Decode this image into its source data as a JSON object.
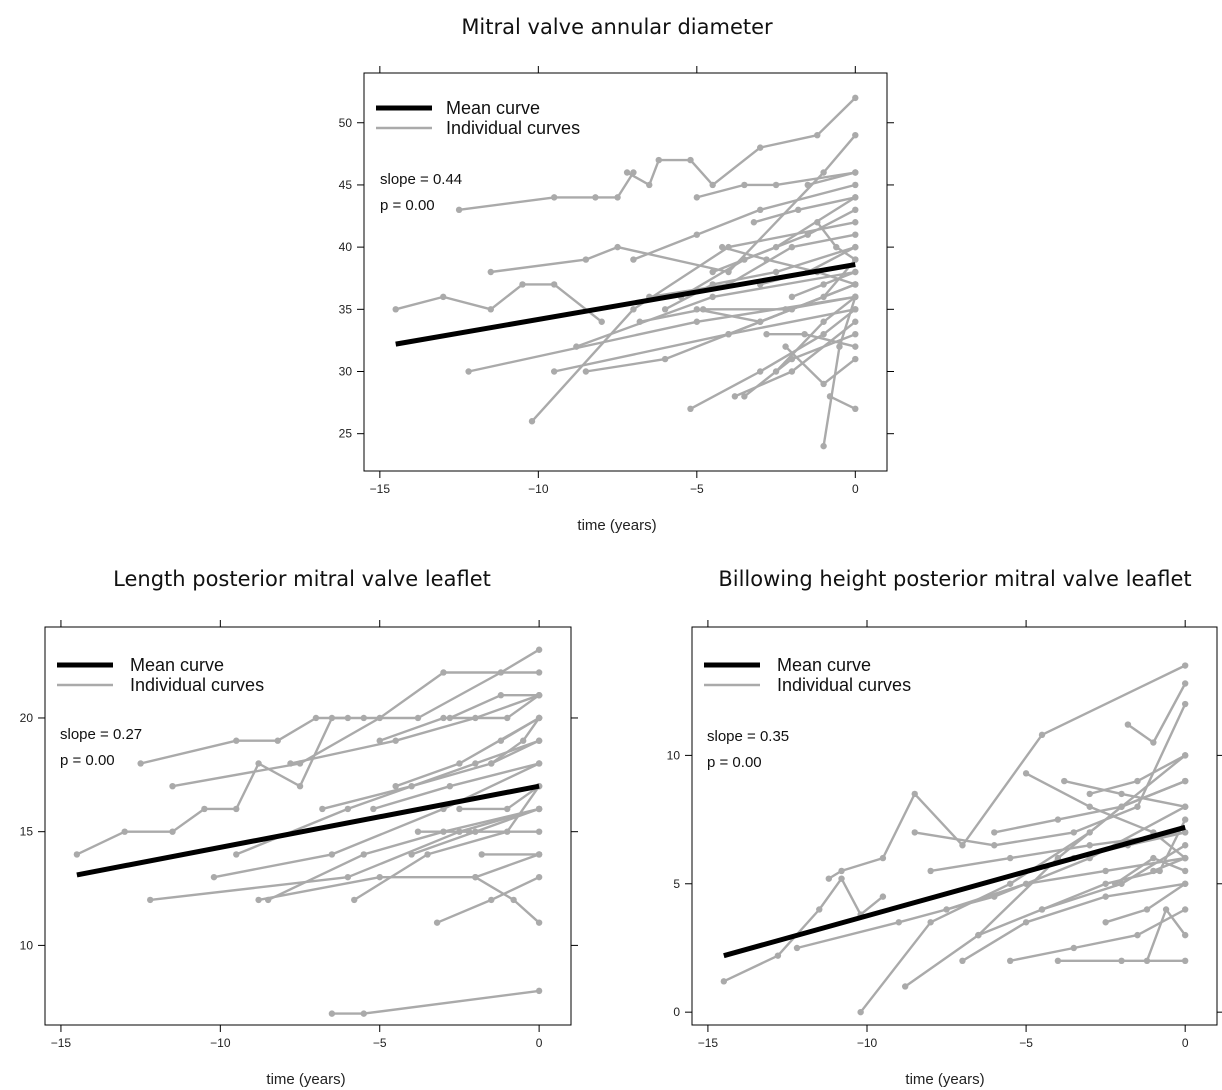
{
  "chart_data": [
    {
      "type": "line",
      "title": "Mitral valve annular diameter",
      "xlabel": "time (years)",
      "ylabel": "",
      "xlim": [
        -15.5,
        1.0
      ],
      "ylim": [
        22,
        54
      ],
      "xticks": [
        -15,
        -10,
        -5,
        0
      ],
      "yticks": [
        25,
        30,
        35,
        40,
        45,
        50
      ],
      "legend": {
        "position": "top-left",
        "entries": [
          "Mean curve",
          "Individual curves"
        ]
      },
      "annotations": {
        "slope": "slope = 0.44",
        "p": "p = 0.00"
      },
      "grid": false,
      "colors": {
        "mean": "#000000",
        "individual": "#aaaaaa"
      },
      "mean_curve": {
        "x": [
          -14.5,
          0
        ],
        "y": [
          32.2,
          38.6
        ]
      },
      "individual_curves": [
        {
          "x": [
            -14.5,
            -13,
            -11.5,
            -10.5,
            -9.5,
            -8
          ],
          "y": [
            35,
            36,
            35,
            37,
            37,
            34
          ]
        },
        {
          "x": [
            -12.5,
            -9.5,
            -8.2,
            -7.5,
            -7
          ],
          "y": [
            43,
            44,
            44,
            44,
            46
          ]
        },
        {
          "x": [
            -7.2,
            -6.5,
            -6.2,
            -5.2,
            -4.5,
            -3,
            -1.2,
            0
          ],
          "y": [
            46,
            45,
            47,
            47,
            45,
            48,
            49,
            52
          ]
        },
        {
          "x": [
            -11.5,
            -8.5,
            -7.5,
            -4,
            -1,
            0
          ],
          "y": [
            38,
            39,
            40,
            38,
            46,
            49
          ]
        },
        {
          "x": [
            -5,
            -3.5,
            -2.5,
            0
          ],
          "y": [
            44,
            45,
            45,
            46
          ]
        },
        {
          "x": [
            -12.2,
            -5,
            0
          ],
          "y": [
            30,
            34,
            36
          ]
        },
        {
          "x": [
            -9.5,
            -4,
            0
          ],
          "y": [
            30,
            33,
            35
          ]
        },
        {
          "x": [
            -10.2,
            -7,
            -4,
            0
          ],
          "y": [
            26,
            35,
            40,
            42
          ]
        },
        {
          "x": [
            -8.8,
            -4.5,
            0
          ],
          "y": [
            32,
            36,
            38
          ]
        },
        {
          "x": [
            -8.5,
            -6,
            -3,
            0
          ],
          "y": [
            30,
            31,
            34,
            37
          ]
        },
        {
          "x": [
            -7,
            -5,
            -3,
            0
          ],
          "y": [
            39,
            41,
            43,
            45
          ]
        },
        {
          "x": [
            -6.5,
            -4,
            -2,
            0
          ],
          "y": [
            36,
            37,
            40,
            41
          ]
        },
        {
          "x": [
            -6,
            -4.5,
            -2.5,
            0
          ],
          "y": [
            35,
            37,
            38,
            40
          ]
        },
        {
          "x": [
            -5.5,
            -3.5,
            -1.5,
            0
          ],
          "y": [
            36,
            39,
            41,
            43
          ]
        },
        {
          "x": [
            -5,
            -3,
            -1,
            0
          ],
          "y": [
            35,
            34,
            36,
            39
          ]
        },
        {
          "x": [
            -4.5,
            -2.5,
            0
          ],
          "y": [
            38,
            40,
            44
          ]
        },
        {
          "x": [
            -4,
            -2,
            0
          ],
          "y": [
            33,
            35,
            37
          ]
        },
        {
          "x": [
            -3.5,
            -2,
            0
          ],
          "y": [
            28,
            31,
            33
          ]
        },
        {
          "x": [
            -3,
            -1.5,
            0
          ],
          "y": [
            37,
            38,
            40
          ]
        },
        {
          "x": [
            -2.5,
            -1,
            0
          ],
          "y": [
            30,
            34,
            36
          ]
        },
        {
          "x": [
            -2,
            -1,
            0
          ],
          "y": [
            36,
            37,
            38
          ]
        },
        {
          "x": [
            -5.2,
            -3,
            -1,
            0
          ],
          "y": [
            27,
            30,
            33,
            35
          ]
        },
        {
          "x": [
            -3.8,
            -2,
            0
          ],
          "y": [
            28,
            30,
            34
          ]
        },
        {
          "x": [
            -1,
            -0.5,
            0
          ],
          "y": [
            24,
            32,
            36
          ]
        },
        {
          "x": [
            -1.2,
            -0.6,
            0
          ],
          "y": [
            42,
            40,
            39
          ]
        },
        {
          "x": [
            -1.5,
            0
          ],
          "y": [
            45,
            46
          ]
        },
        {
          "x": [
            -2.2,
            -1,
            0
          ],
          "y": [
            32,
            29,
            31
          ]
        },
        {
          "x": [
            -0.8,
            0
          ],
          "y": [
            28,
            27
          ]
        },
        {
          "x": [
            -4.2,
            -2.8,
            -1.2,
            0
          ],
          "y": [
            40,
            39,
            38,
            37
          ]
        },
        {
          "x": [
            -6.8,
            -4.8,
            -2.2,
            0
          ],
          "y": [
            34,
            35,
            35,
            36
          ]
        },
        {
          "x": [
            -3.2,
            -1.8,
            0
          ],
          "y": [
            42,
            43,
            44
          ]
        },
        {
          "x": [
            -2.8,
            -1.6,
            0
          ],
          "y": [
            33,
            33,
            32
          ]
        }
      ]
    },
    {
      "type": "line",
      "title": "Length posterior mitral valve leaflet",
      "xlabel": "time (years)",
      "ylabel": "",
      "xlim": [
        -15.5,
        1.0
      ],
      "ylim": [
        6.5,
        24
      ],
      "xticks": [
        -15,
        -10,
        -5,
        0
      ],
      "yticks": [
        10,
        15,
        20
      ],
      "legend": {
        "position": "top-left",
        "entries": [
          "Mean curve",
          "Individual curves"
        ]
      },
      "annotations": {
        "slope": "slope = 0.27",
        "p": "p = 0.00"
      },
      "grid": false,
      "colors": {
        "mean": "#000000",
        "individual": "#aaaaaa"
      },
      "mean_curve": {
        "x": [
          -14.5,
          0
        ],
        "y": [
          13.1,
          17.0
        ]
      },
      "individual_curves": [
        {
          "x": [
            -14.5,
            -13,
            -11.5,
            -10.5,
            -9.5,
            -8.8,
            -7.5,
            -6.5,
            -6
          ],
          "y": [
            14,
            15,
            15,
            16,
            16,
            18,
            17,
            20,
            20
          ]
        },
        {
          "x": [
            -12.5,
            -9.5,
            -8.2,
            -7,
            -5.5,
            -3.8,
            -1.2,
            0
          ],
          "y": [
            18,
            19,
            19,
            20,
            20,
            20,
            22,
            23
          ]
        },
        {
          "x": [
            -11.5,
            -7.5,
            -5,
            -3,
            0
          ],
          "y": [
            17,
            18,
            20,
            22,
            22
          ]
        },
        {
          "x": [
            -12.2,
            -6,
            -2.5,
            0
          ],
          "y": [
            12,
            13,
            15,
            16
          ]
        },
        {
          "x": [
            -10.2,
            -6.5,
            -3,
            0
          ],
          "y": [
            13,
            14,
            16,
            18
          ]
        },
        {
          "x": [
            -9.5,
            -6,
            -2,
            0
          ],
          "y": [
            14,
            16,
            18,
            19
          ]
        },
        {
          "x": [
            -8.8,
            -5,
            -2,
            0
          ],
          "y": [
            12,
            13,
            13,
            14
          ]
        },
        {
          "x": [
            -8.5,
            -5.5,
            -3,
            0
          ],
          "y": [
            12,
            14,
            15,
            16
          ]
        },
        {
          "x": [
            -7.8,
            -4.5,
            -2,
            0
          ],
          "y": [
            18,
            19,
            20,
            21
          ]
        },
        {
          "x": [
            -6.8,
            -4,
            -1.5,
            0
          ],
          "y": [
            16,
            17,
            18,
            19
          ]
        },
        {
          "x": [
            -6.5,
            -5.5,
            0
          ],
          "y": [
            7,
            7,
            8
          ]
        },
        {
          "x": [
            -5.8,
            -3.5,
            -1,
            0
          ],
          "y": [
            12,
            14,
            15,
            17
          ]
        },
        {
          "x": [
            -5,
            -3,
            -1,
            0
          ],
          "y": [
            19,
            20,
            20,
            21
          ]
        },
        {
          "x": [
            -4.5,
            -2.5,
            0
          ],
          "y": [
            17,
            18,
            20
          ]
        },
        {
          "x": [
            -4,
            -2,
            0
          ],
          "y": [
            14,
            15,
            16
          ]
        },
        {
          "x": [
            -3.2,
            -1.5,
            0
          ],
          "y": [
            11,
            12,
            13
          ]
        },
        {
          "x": [
            -2.8,
            -1.2,
            0
          ],
          "y": [
            20,
            21,
            21
          ]
        },
        {
          "x": [
            -2.5,
            -1,
            0
          ],
          "y": [
            16,
            16,
            17
          ]
        },
        {
          "x": [
            -2,
            -0.8,
            0
          ],
          "y": [
            13,
            12,
            11
          ]
        },
        {
          "x": [
            -1.5,
            -0.5,
            0
          ],
          "y": [
            18,
            19,
            20
          ]
        },
        {
          "x": [
            -3.8,
            -2.2,
            0
          ],
          "y": [
            15,
            15,
            15
          ]
        },
        {
          "x": [
            -5.2,
            -2.8,
            0
          ],
          "y": [
            16,
            17,
            18
          ]
        },
        {
          "x": [
            -1.8,
            0
          ],
          "y": [
            14,
            14
          ]
        },
        {
          "x": [
            -1.2,
            0
          ],
          "y": [
            19,
            20
          ]
        }
      ]
    },
    {
      "type": "line",
      "title": "Billowing height posterior mitral valve leaflet",
      "xlabel": "time (years)",
      "ylabel": "",
      "xlim": [
        -15.5,
        1.0
      ],
      "ylim": [
        -0.5,
        15
      ],
      "xticks": [
        -15,
        -10,
        -5,
        0
      ],
      "yticks": [
        0,
        5,
        10
      ],
      "legend": {
        "position": "top-left",
        "entries": [
          "Mean curve",
          "Individual curves"
        ]
      },
      "annotations": {
        "slope": "slope = 0.35",
        "p": "p = 0.00"
      },
      "grid": false,
      "colors": {
        "mean": "#000000",
        "individual": "#aaaaaa"
      },
      "mean_curve": {
        "x": [
          -14.5,
          0
        ],
        "y": [
          2.2,
          7.2
        ]
      },
      "individual_curves": [
        {
          "x": [
            -14.5,
            -12.8,
            -11.5,
            -10.8,
            -10.2,
            -9.5
          ],
          "y": [
            1.2,
            2.2,
            4.0,
            5.2,
            3.8,
            4.5
          ]
        },
        {
          "x": [
            -11.2,
            -10.8,
            -9.5,
            -8.5,
            -7,
            -4.5,
            0
          ],
          "y": [
            5.2,
            5.5,
            6.0,
            8.5,
            6.5,
            10.8,
            13.5
          ]
        },
        {
          "x": [
            -10.2,
            -8,
            -5.5,
            -3,
            0
          ],
          "y": [
            0,
            3.5,
            5,
            7,
            10
          ]
        },
        {
          "x": [
            -12.2,
            -9,
            -6,
            -3,
            0
          ],
          "y": [
            2.5,
            3.5,
            4.5,
            6,
            8
          ]
        },
        {
          "x": [
            -8.8,
            -6.5,
            -4,
            -2,
            0
          ],
          "y": [
            1,
            3,
            6,
            8,
            9
          ]
        },
        {
          "x": [
            -8.5,
            -6,
            -3.5,
            -1.5,
            0
          ],
          "y": [
            7,
            6.5,
            7,
            8,
            12
          ]
        },
        {
          "x": [
            -8,
            -5.5,
            -3,
            0
          ],
          "y": [
            5.5,
            6,
            6.5,
            7
          ]
        },
        {
          "x": [
            -7.5,
            -5,
            -2.5,
            0
          ],
          "y": [
            4,
            5,
            5.5,
            6
          ]
        },
        {
          "x": [
            -7,
            -5,
            -2.5,
            0
          ],
          "y": [
            2,
            3.5,
            4.5,
            5
          ]
        },
        {
          "x": [
            -6.5,
            -4.5,
            -2,
            0
          ],
          "y": [
            3,
            4,
            5,
            6.5
          ]
        },
        {
          "x": [
            -6,
            -4,
            -2,
            0
          ],
          "y": [
            7,
            7.5,
            8,
            9
          ]
        },
        {
          "x": [
            -5.5,
            -3.5,
            -1.5,
            0
          ],
          "y": [
            2,
            2.5,
            3,
            4
          ]
        },
        {
          "x": [
            -5,
            -3,
            -1,
            0
          ],
          "y": [
            9.3,
            8,
            7,
            6
          ]
        },
        {
          "x": [
            -4.5,
            -2.5,
            -0.8,
            0
          ],
          "y": [
            4,
            5,
            5.5,
            7.5
          ]
        },
        {
          "x": [
            -4,
            -2,
            0
          ],
          "y": [
            2,
            2,
            2
          ]
        },
        {
          "x": [
            -3.5,
            -1.8,
            0
          ],
          "y": [
            6,
            6.5,
            7
          ]
        },
        {
          "x": [
            -3,
            -1.5,
            0
          ],
          "y": [
            8.5,
            9,
            10
          ]
        },
        {
          "x": [
            -2.5,
            -1.2,
            0
          ],
          "y": [
            3.5,
            4,
            5
          ]
        },
        {
          "x": [
            -1.8,
            -1,
            0
          ],
          "y": [
            11.2,
            10.5,
            12.8
          ]
        },
        {
          "x": [
            -1.2,
            -0.6,
            0
          ],
          "y": [
            2,
            4,
            3
          ]
        },
        {
          "x": [
            -2.2,
            -1,
            0
          ],
          "y": [
            5,
            6,
            5.5
          ]
        },
        {
          "x": [
            -3.8,
            -2,
            0
          ],
          "y": [
            9,
            8.5,
            8
          ]
        },
        {
          "x": [
            -1,
            0
          ],
          "y": [
            5.5,
            6
          ]
        }
      ]
    }
  ]
}
